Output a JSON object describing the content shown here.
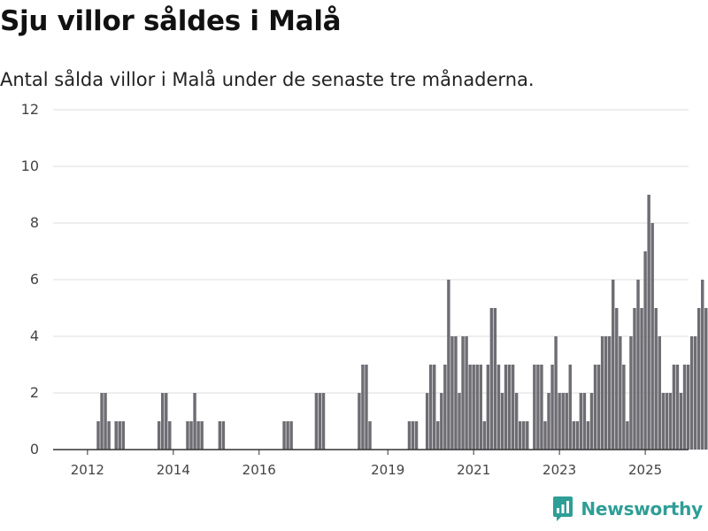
{
  "title": "Sju villor såldes i Malå",
  "subtitle": "Antal sålda villor i Malå under de senaste tre månaderna.",
  "brand": "Newsworthy",
  "colors": {
    "bar": "#6e6d73",
    "highlight": "#1f968f",
    "grid": "#dcdcdc",
    "axis": "#333333"
  },
  "chart_data": {
    "type": "bar",
    "title": "",
    "xlabel": "",
    "ylabel": "",
    "ylim": [
      0,
      12
    ],
    "yticks": [
      0,
      2,
      4,
      6,
      8,
      10,
      12
    ],
    "grid": true,
    "x_start": "2011-10",
    "x_tick_labels": [
      "2012",
      "2014",
      "2016",
      "2019",
      "2021",
      "2023",
      "2025"
    ],
    "x_tick_months": [
      "2012-07",
      "2014-07",
      "2016-07",
      "2019-07",
      "2021-07",
      "2023-07",
      "2025-07"
    ],
    "highlight_label": "7",
    "values": [
      0,
      0,
      0,
      0,
      0,
      0,
      0,
      0,
      0,
      0,
      0,
      0,
      1,
      2,
      2,
      1,
      0,
      1,
      1,
      1,
      0,
      0,
      0,
      0,
      0,
      0,
      0,
      0,
      0,
      1,
      2,
      2,
      1,
      0,
      0,
      0,
      0,
      1,
      1,
      2,
      1,
      1,
      0,
      0,
      0,
      0,
      1,
      1,
      0,
      0,
      0,
      0,
      0,
      0,
      0,
      0,
      0,
      0,
      0,
      0,
      0,
      0,
      0,
      0,
      1,
      1,
      1,
      0,
      0,
      0,
      0,
      0,
      0,
      2,
      2,
      2,
      0,
      0,
      0,
      0,
      0,
      0,
      0,
      0,
      0,
      2,
      3,
      3,
      1,
      0,
      0,
      0,
      0,
      0,
      0,
      0,
      0,
      0,
      0,
      1,
      1,
      1,
      0,
      0,
      2,
      3,
      3,
      1,
      2,
      3,
      6,
      4,
      4,
      2,
      4,
      4,
      3,
      3,
      3,
      3,
      1,
      3,
      5,
      5,
      3,
      2,
      3,
      3,
      3,
      2,
      1,
      1,
      1,
      0,
      3,
      3,
      3,
      1,
      2,
      3,
      4,
      2,
      2,
      2,
      3,
      1,
      1,
      2,
      2,
      1,
      2,
      3,
      3,
      4,
      4,
      4,
      6,
      5,
      4,
      3,
      1,
      4,
      5,
      6,
      5,
      7,
      9,
      8,
      5,
      4,
      2,
      2,
      2,
      3,
      3,
      2,
      3,
      3,
      4,
      4,
      5,
      6,
      5,
      5,
      4,
      1,
      5,
      7
    ]
  }
}
